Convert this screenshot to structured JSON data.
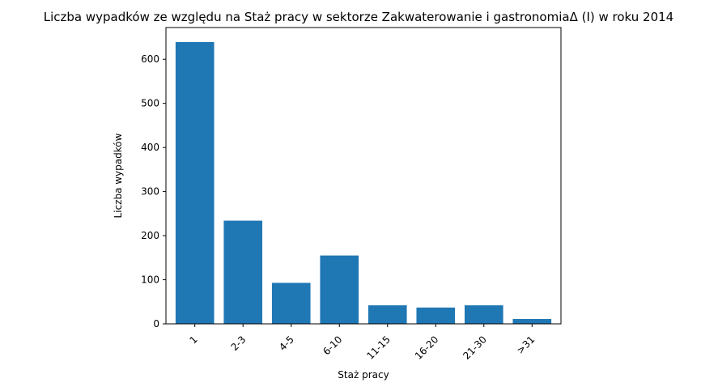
{
  "chart_data": {
    "type": "bar",
    "title": "Liczba wypadków ze względu na Staż pracy w sektorze Zakwaterowanie i gastronomiaΔ (I) w roku 2014",
    "xlabel": "Staż pracy",
    "ylabel": "Liczba wypadków",
    "categories": [
      "1",
      "2-3",
      "4-5",
      "6-10",
      "11-15",
      "16-20",
      "21-30",
      ">31"
    ],
    "values": [
      639,
      234,
      93,
      155,
      42,
      37,
      42,
      11
    ],
    "ylim": [
      0,
      672
    ],
    "yticks": [
      0,
      100,
      200,
      300,
      400,
      500,
      600
    ],
    "bar_color": "#1f77b4",
    "grid": false,
    "legend": "none"
  }
}
